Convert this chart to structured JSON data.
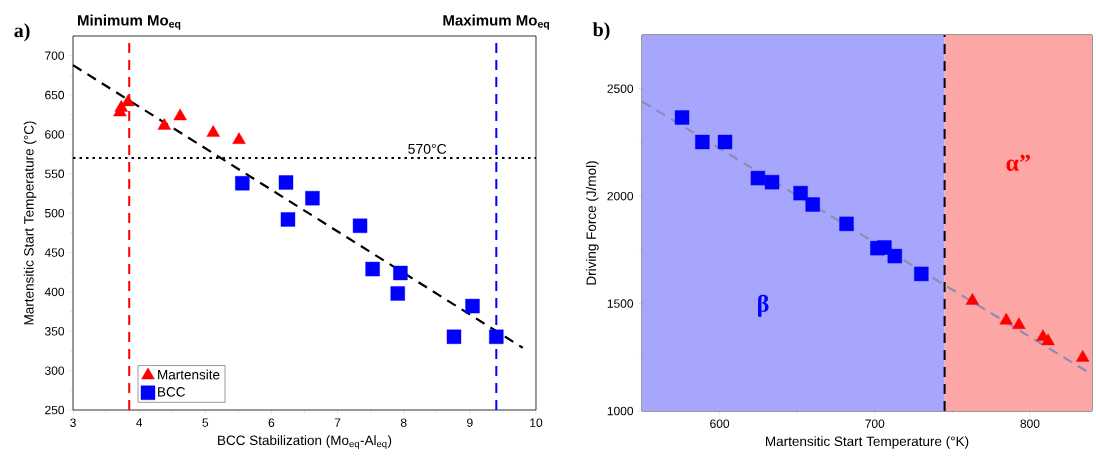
{
  "chart_data": [
    {
      "type": "scatter",
      "xlabel": "BCC Stabilization (Mo$_{eq}$-Al$_{eq}$)",
      "ylabel": "Martensitic Start Temperature (°C)",
      "xlim": [
        3,
        10
      ],
      "xticks": [
        3,
        4,
        5,
        6,
        7,
        8,
        9,
        10
      ],
      "ylim": [
        250,
        725
      ],
      "yticks": [
        250,
        300,
        350,
        400,
        450,
        500,
        550,
        600,
        650,
        700
      ],
      "legend": "bottom left",
      "annotations": [
        "a)"
      ],
      "series": [
        {
          "name": "Martensite",
          "color": "#ff0000",
          "marker": "triangle",
          "x": [
            3.73,
            3.71,
            3.83,
            4.38,
            4.62,
            5.12,
            5.51
          ],
          "values": [
            634,
            628,
            641,
            611,
            623,
            602,
            593
          ]
        },
        {
          "name": "BCC",
          "color": "#0000ff",
          "marker": "square",
          "x": [
            5.56,
            6.22,
            6.25,
            6.62,
            7.34,
            7.53,
            7.89,
            7.95,
            7.91,
            9.04,
            8.76,
            9.4
          ],
          "values": [
            538,
            539,
            492,
            519,
            484,
            429,
            null,
            424,
            398,
            382,
            343,
            343
          ]
        },
        {
          "type": "line",
          "color": "#000000",
          "line_style": "dashed",
          "x": [
            3,
            9.8
          ],
          "values": [
            688,
            329
          ]
        }
      ],
      "ref_lines": [
        {
          "axis": "x",
          "value": 3.85,
          "label": "Minimum Mo$_{eq}$",
          "color": "#ff0000",
          "line_style": "dashed"
        },
        {
          "axis": "x",
          "value": 9.4,
          "label": "Maximum Mo$_{eq}$",
          "color": "#0000ff",
          "line_style": "dashed"
        },
        {
          "axis": "y",
          "value": 570,
          "label": "570°C",
          "color": "#000000",
          "line_style": "dotted"
        }
      ]
    },
    {
      "type": "scatter",
      "xlabel": "Martensitic Start Temperature (°K)",
      "ylabel": "Driving Force (J/mol)",
      "xlim": [
        550,
        840
      ],
      "xticks": [
        600,
        700,
        800
      ],
      "ylim": [
        1000,
        2750
      ],
      "yticks": [
        1000,
        1500,
        2000,
        2500
      ],
      "annotations": [
        "b)"
      ],
      "series": [
        {
          "color": "#0000ff",
          "marker": "square",
          "x": [
            575.8,
            588.9,
            603.5,
            624.7,
            633.8,
            652.2,
            660,
            681.8,
            701.7,
            706.2,
            712.9,
            730
          ],
          "values": [
            2366,
            2252,
            2252,
            2084,
            2065,
            2014,
            1961,
            1871,
            1758,
            1761,
            1721,
            1638
          ]
        },
        {
          "color": "#ff0000",
          "marker": "triangle",
          "x": [
            762.9,
            784.7,
            792.9,
            808.4,
            811.7,
            834
          ],
          "values": [
            1513,
            1421,
            1400,
            1344,
            1325,
            1248
          ]
        },
        {
          "type": "line",
          "color": "#8c8cb4",
          "line_style": "dashed",
          "x": [
            550,
            840
          ],
          "values": [
            2441,
            1170
          ]
        }
      ],
      "ref_lines": [
        {
          "axis": "x",
          "value": 745,
          "color": "#000000",
          "line_style": "dashed"
        }
      ],
      "bands": [
        {
          "axis": "x",
          "from": 550,
          "to": 745,
          "label": "β",
          "color": "#a6a6fc"
        },
        {
          "axis": "x",
          "from": 745,
          "to": 840,
          "label": "α”",
          "color": "#fca6a6"
        }
      ]
    }
  ]
}
